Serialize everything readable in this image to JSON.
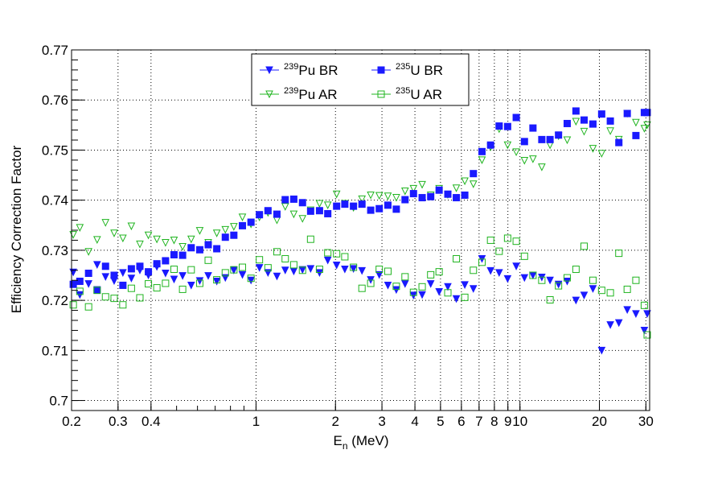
{
  "chart_data": {
    "type": "scatter",
    "xlabel": "E_n (MeV)",
    "xlabel_main": "E",
    "xlabel_sub": "n",
    "xlabel_rest": " (MeV)",
    "ylabel": "Efficiency Correction Factor",
    "x_scale": "log",
    "xlim": [
      0.2,
      31
    ],
    "ylim": [
      0.698,
      0.77
    ],
    "grid": true,
    "legend_position": "top-center",
    "x_ticks": [
      {
        "v": 0.2,
        "label": "0.2"
      },
      {
        "v": 0.3,
        "label": "0.3"
      },
      {
        "v": 0.4,
        "label": "0.4"
      },
      {
        "v": 1,
        "label": "1"
      },
      {
        "v": 2,
        "label": "2"
      },
      {
        "v": 3,
        "label": "3"
      },
      {
        "v": 4,
        "label": "4"
      },
      {
        "v": 5,
        "label": "5"
      },
      {
        "v": 6,
        "label": "6"
      },
      {
        "v": 7,
        "label": "7"
      },
      {
        "v": 8,
        "label": "8"
      },
      {
        "v": 9,
        "label": "9"
      },
      {
        "v": 10,
        "label": "10"
      },
      {
        "v": 20,
        "label": "20"
      },
      {
        "v": 30,
        "label": "30"
      }
    ],
    "y_ticks": [
      {
        "v": 0.7,
        "label": "0.7"
      },
      {
        "v": 0.71,
        "label": "0.71"
      },
      {
        "v": 0.72,
        "label": "0.72"
      },
      {
        "v": 0.73,
        "label": "0.73"
      },
      {
        "v": 0.74,
        "label": "0.74"
      },
      {
        "v": 0.75,
        "label": "0.75"
      },
      {
        "v": 0.76,
        "label": "0.76"
      },
      {
        "v": 0.77,
        "label": "0.77"
      }
    ],
    "series": [
      {
        "name_sup": "239",
        "name_rest": "Pu BR",
        "color": "#1a1aff",
        "marker": "filled-triangle-down",
        "points": [
          [
            0.203,
            0.7256
          ],
          [
            0.215,
            0.7211
          ],
          [
            0.232,
            0.7233
          ],
          [
            0.25,
            0.7271
          ],
          [
            0.269,
            0.7247
          ],
          [
            0.29,
            0.7239
          ],
          [
            0.313,
            0.7255
          ],
          [
            0.337,
            0.7244
          ],
          [
            0.363,
            0.726
          ],
          [
            0.391,
            0.725
          ],
          [
            0.421,
            0.7267
          ],
          [
            0.454,
            0.7254
          ],
          [
            0.489,
            0.7242
          ],
          [
            0.527,
            0.7249
          ],
          [
            0.568,
            0.723
          ],
          [
            0.612,
            0.7239
          ],
          [
            0.659,
            0.7249
          ],
          [
            0.71,
            0.7238
          ],
          [
            0.765,
            0.7245
          ],
          [
            0.824,
            0.726
          ],
          [
            0.888,
            0.7251
          ],
          [
            0.957,
            0.724
          ],
          [
            1.03,
            0.7265
          ],
          [
            1.11,
            0.7255
          ],
          [
            1.2,
            0.7248
          ],
          [
            1.29,
            0.726
          ],
          [
            1.39,
            0.7258
          ],
          [
            1.5,
            0.7261
          ],
          [
            1.61,
            0.7263
          ],
          [
            1.74,
            0.7255
          ],
          [
            1.87,
            0.728
          ],
          [
            2.02,
            0.727
          ],
          [
            2.17,
            0.7262
          ],
          [
            2.34,
            0.7263
          ],
          [
            2.52,
            0.7259
          ],
          [
            2.72,
            0.7241
          ],
          [
            2.93,
            0.7251
          ],
          [
            3.16,
            0.723
          ],
          [
            3.4,
            0.7221
          ],
          [
            3.67,
            0.7233
          ],
          [
            3.95,
            0.721
          ],
          [
            4.26,
            0.7211
          ],
          [
            4.59,
            0.7233
          ],
          [
            4.94,
            0.7217
          ],
          [
            5.33,
            0.7227
          ],
          [
            5.74,
            0.7203
          ],
          [
            6.18,
            0.7231
          ],
          [
            6.66,
            0.7223
          ],
          [
            7.18,
            0.7283
          ],
          [
            7.74,
            0.7259
          ],
          [
            8.34,
            0.7255
          ],
          [
            8.98,
            0.7243
          ],
          [
            9.68,
            0.7268
          ],
          [
            10.4,
            0.7245
          ],
          [
            11.2,
            0.725
          ],
          [
            12.1,
            0.7246
          ],
          [
            13.0,
            0.724
          ],
          [
            14.0,
            0.7232
          ],
          [
            15.1,
            0.7238
          ],
          [
            16.3,
            0.72
          ],
          [
            17.5,
            0.721
          ],
          [
            18.9,
            0.7223
          ],
          [
            20.4,
            0.71
          ],
          [
            22.0,
            0.7151
          ],
          [
            23.7,
            0.7155
          ],
          [
            25.5,
            0.7181
          ],
          [
            27.5,
            0.7173
          ],
          [
            29.6,
            0.714
          ],
          [
            31.0,
            0.7173
          ]
        ]
      },
      {
        "name_sup": "239",
        "name_rest": "Pu AR",
        "color": "#1fb41f",
        "marker": "open-triangle-down",
        "points": [
          [
            0.203,
            0.7331
          ],
          [
            0.215,
            0.7345
          ],
          [
            0.232,
            0.7297
          ],
          [
            0.25,
            0.7321
          ],
          [
            0.269,
            0.7355
          ],
          [
            0.29,
            0.7334
          ],
          [
            0.313,
            0.7324
          ],
          [
            0.337,
            0.7348
          ],
          [
            0.363,
            0.7312
          ],
          [
            0.391,
            0.733
          ],
          [
            0.421,
            0.7322
          ],
          [
            0.454,
            0.7315
          ],
          [
            0.489,
            0.732
          ],
          [
            0.527,
            0.7307
          ],
          [
            0.568,
            0.7322
          ],
          [
            0.612,
            0.7339
          ],
          [
            0.659,
            0.7315
          ],
          [
            0.71,
            0.7334
          ],
          [
            0.765,
            0.7341
          ],
          [
            0.824,
            0.7347
          ],
          [
            0.888,
            0.7366
          ],
          [
            0.957,
            0.7352
          ],
          [
            1.03,
            0.7366
          ],
          [
            1.11,
            0.7375
          ],
          [
            1.2,
            0.736
          ],
          [
            1.29,
            0.7387
          ],
          [
            1.39,
            0.7372
          ],
          [
            1.5,
            0.7363
          ],
          [
            1.61,
            0.738
          ],
          [
            1.74,
            0.7393
          ],
          [
            1.87,
            0.739
          ],
          [
            2.02,
            0.7412
          ],
          [
            2.17,
            0.7393
          ],
          [
            2.34,
            0.7385
          ],
          [
            2.52,
            0.7402
          ],
          [
            2.72,
            0.741
          ],
          [
            2.93,
            0.7409
          ],
          [
            3.16,
            0.7408
          ],
          [
            3.4,
            0.7405
          ],
          [
            3.67,
            0.7418
          ],
          [
            3.95,
            0.7423
          ],
          [
            4.26,
            0.7431
          ],
          [
            4.59,
            0.741
          ],
          [
            4.94,
            0.7423
          ],
          [
            5.33,
            0.7411
          ],
          [
            5.74,
            0.7424
          ],
          [
            6.18,
            0.7438
          ],
          [
            6.66,
            0.7432
          ],
          [
            7.18,
            0.748
          ],
          [
            7.74,
            0.7506
          ],
          [
            8.34,
            0.7542
          ],
          [
            8.98,
            0.751
          ],
          [
            9.68,
            0.7496
          ],
          [
            10.4,
            0.7479
          ],
          [
            11.2,
            0.7482
          ],
          [
            12.1,
            0.7466
          ],
          [
            13.0,
            0.751
          ],
          [
            14.0,
            0.7528
          ],
          [
            15.1,
            0.752
          ],
          [
            16.3,
            0.7557
          ],
          [
            17.5,
            0.7537
          ],
          [
            18.9,
            0.7503
          ],
          [
            20.4,
            0.7493
          ],
          [
            22.0,
            0.7538
          ],
          [
            23.7,
            0.7521
          ],
          [
            25.5,
            0.7573
          ],
          [
            27.5,
            0.7555
          ],
          [
            29.6,
            0.7543
          ],
          [
            31.0,
            0.755
          ]
        ]
      },
      {
        "name_sup": "235",
        "name_rest": "U BR",
        "color": "#1a1aff",
        "marker": "filled-square",
        "points": [
          [
            0.203,
            0.7232
          ],
          [
            0.215,
            0.7238
          ],
          [
            0.232,
            0.7254
          ],
          [
            0.25,
            0.7221
          ],
          [
            0.269,
            0.7268
          ],
          [
            0.29,
            0.725
          ],
          [
            0.313,
            0.723
          ],
          [
            0.337,
            0.7263
          ],
          [
            0.363,
            0.7268
          ],
          [
            0.391,
            0.7257
          ],
          [
            0.421,
            0.7273
          ],
          [
            0.454,
            0.7279
          ],
          [
            0.489,
            0.7291
          ],
          [
            0.527,
            0.729
          ],
          [
            0.568,
            0.7305
          ],
          [
            0.612,
            0.7301
          ],
          [
            0.659,
            0.7311
          ],
          [
            0.71,
            0.7303
          ],
          [
            0.765,
            0.7326
          ],
          [
            0.824,
            0.733
          ],
          [
            0.888,
            0.7349
          ],
          [
            0.957,
            0.7356
          ],
          [
            1.03,
            0.7371
          ],
          [
            1.11,
            0.7379
          ],
          [
            1.2,
            0.7372
          ],
          [
            1.29,
            0.7401
          ],
          [
            1.39,
            0.7402
          ],
          [
            1.5,
            0.7395
          ],
          [
            1.61,
            0.7378
          ],
          [
            1.74,
            0.7379
          ],
          [
            1.87,
            0.7373
          ],
          [
            2.02,
            0.7388
          ],
          [
            2.17,
            0.7392
          ],
          [
            2.34,
            0.7388
          ],
          [
            2.52,
            0.7392
          ],
          [
            2.72,
            0.738
          ],
          [
            2.93,
            0.7383
          ],
          [
            3.16,
            0.739
          ],
          [
            3.4,
            0.7382
          ],
          [
            3.67,
            0.7401
          ],
          [
            3.95,
            0.7413
          ],
          [
            4.26,
            0.7405
          ],
          [
            4.59,
            0.7407
          ],
          [
            4.94,
            0.742
          ],
          [
            5.33,
            0.7412
          ],
          [
            5.74,
            0.7405
          ],
          [
            6.18,
            0.741
          ],
          [
            6.66,
            0.7453
          ],
          [
            7.18,
            0.7497
          ],
          [
            7.74,
            0.751
          ],
          [
            8.34,
            0.7548
          ],
          [
            8.98,
            0.7547
          ],
          [
            9.68,
            0.7565
          ],
          [
            10.4,
            0.7517
          ],
          [
            11.2,
            0.7544
          ],
          [
            12.1,
            0.7521
          ],
          [
            13.0,
            0.7521
          ],
          [
            14.0,
            0.753
          ],
          [
            15.1,
            0.7553
          ],
          [
            16.3,
            0.7578
          ],
          [
            17.5,
            0.756
          ],
          [
            18.9,
            0.7552
          ],
          [
            20.4,
            0.7572
          ],
          [
            22.0,
            0.7558
          ],
          [
            23.7,
            0.7515
          ],
          [
            25.5,
            0.7573
          ],
          [
            27.5,
            0.7529
          ],
          [
            29.6,
            0.7575
          ],
          [
            31.0,
            0.7575
          ]
        ]
      },
      {
        "name_sup": "235",
        "name_rest": "U AR",
        "color": "#1fb41f",
        "marker": "open-square",
        "points": [
          [
            0.203,
            0.7191
          ],
          [
            0.215,
            0.7218
          ],
          [
            0.232,
            0.7187
          ],
          [
            0.25,
            0.722
          ],
          [
            0.269,
            0.7207
          ],
          [
            0.29,
            0.7204
          ],
          [
            0.313,
            0.7191
          ],
          [
            0.337,
            0.7224
          ],
          [
            0.363,
            0.7205
          ],
          [
            0.391,
            0.7233
          ],
          [
            0.421,
            0.7225
          ],
          [
            0.454,
            0.7234
          ],
          [
            0.489,
            0.7262
          ],
          [
            0.527,
            0.7222
          ],
          [
            0.568,
            0.7261
          ],
          [
            0.612,
            0.7234
          ],
          [
            0.659,
            0.728
          ],
          [
            0.71,
            0.7241
          ],
          [
            0.765,
            0.7255
          ],
          [
            0.824,
            0.7261
          ],
          [
            0.888,
            0.7266
          ],
          [
            0.957,
            0.7244
          ],
          [
            1.03,
            0.7281
          ],
          [
            1.11,
            0.7265
          ],
          [
            1.2,
            0.7297
          ],
          [
            1.29,
            0.7283
          ],
          [
            1.39,
            0.7271
          ],
          [
            1.5,
            0.726
          ],
          [
            1.61,
            0.7322
          ],
          [
            1.74,
            0.7262
          ],
          [
            1.87,
            0.7295
          ],
          [
            2.02,
            0.7293
          ],
          [
            2.17,
            0.7287
          ],
          [
            2.34,
            0.7266
          ],
          [
            2.52,
            0.7224
          ],
          [
            2.72,
            0.7234
          ],
          [
            2.93,
            0.7262
          ],
          [
            3.16,
            0.7258
          ],
          [
            3.4,
            0.7228
          ],
          [
            3.67,
            0.7247
          ],
          [
            3.95,
            0.7216
          ],
          [
            4.26,
            0.7227
          ],
          [
            4.59,
            0.7251
          ],
          [
            4.94,
            0.7257
          ],
          [
            5.33,
            0.7215
          ],
          [
            5.74,
            0.7283
          ],
          [
            6.18,
            0.7206
          ],
          [
            6.66,
            0.726
          ],
          [
            7.18,
            0.7276
          ],
          [
            7.74,
            0.732
          ],
          [
            8.34,
            0.7298
          ],
          [
            8.98,
            0.7324
          ],
          [
            9.68,
            0.7318
          ],
          [
            10.4,
            0.7288
          ],
          [
            11.2,
            0.725
          ],
          [
            12.1,
            0.724
          ],
          [
            13.0,
            0.7201
          ],
          [
            14.0,
            0.7229
          ],
          [
            15.1,
            0.7245
          ],
          [
            16.3,
            0.7262
          ],
          [
            17.5,
            0.7308
          ],
          [
            18.9,
            0.724
          ],
          [
            20.4,
            0.722
          ],
          [
            22.0,
            0.7215
          ],
          [
            23.7,
            0.7294
          ],
          [
            25.5,
            0.7222
          ],
          [
            27.5,
            0.724
          ],
          [
            29.6,
            0.719
          ],
          [
            31.0,
            0.7131
          ]
        ]
      }
    ]
  }
}
